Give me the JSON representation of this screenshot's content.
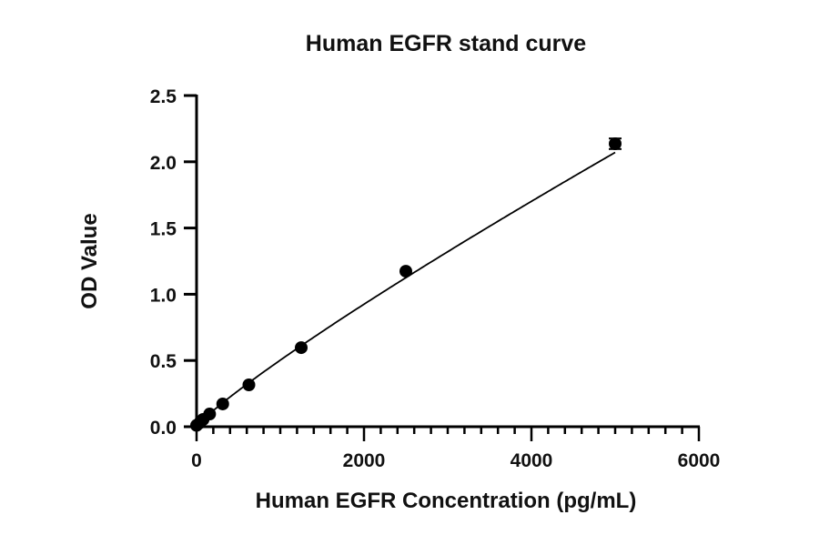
{
  "chart_data": {
    "type": "scatter",
    "title": "Human EGFR stand curve",
    "xlabel": "Human EGFR Concentration (pg/mL)",
    "ylabel": "OD Value",
    "xlim": [
      0,
      6000
    ],
    "ylim": [
      0,
      2.5
    ],
    "xticks": [
      "0",
      "2000",
      "4000",
      "6000"
    ],
    "yticks": [
      "0.0",
      "0.5",
      "1.0",
      "1.5",
      "2.0",
      "2.5"
    ],
    "x_minor_tick_step": 200,
    "grid": false,
    "fit_curve": true,
    "error_bars": true,
    "points": [
      {
        "x": 0,
        "y": 0.01
      },
      {
        "x": 39,
        "y": 0.03
      },
      {
        "x": 78,
        "y": 0.055
      },
      {
        "x": 156,
        "y": 0.096
      },
      {
        "x": 312.5,
        "y": 0.172
      },
      {
        "x": 625,
        "y": 0.316
      },
      {
        "x": 1250,
        "y": 0.597
      },
      {
        "x": 2500,
        "y": 1.174
      },
      {
        "x": 5000,
        "y": 2.136,
        "err": 0.04
      }
    ],
    "color": "#000000"
  }
}
